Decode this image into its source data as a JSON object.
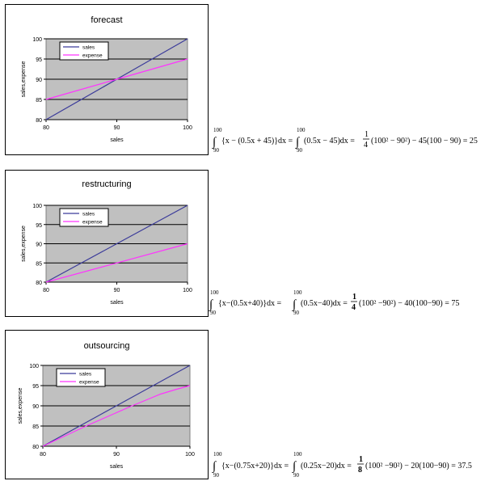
{
  "colors": {
    "sales": "#3b3b9a",
    "expense": "#ff33ff",
    "plot_bg": "#c0c0c0",
    "grid": "#000000"
  },
  "chart_data": [
    {
      "type": "line",
      "title": "forecast",
      "xlabel": "sales",
      "ylabel": "sales,expense",
      "x": [
        80,
        90,
        100
      ],
      "xlim": [
        80,
        100
      ],
      "ylim": [
        80,
        100
      ],
      "xticks": [
        "80",
        "90",
        "100"
      ],
      "yticks": [
        "80",
        "85",
        "90",
        "95",
        "100"
      ],
      "legend": "top-left",
      "series": [
        {
          "name": "sales",
          "values": [
            80,
            90,
            100
          ]
        },
        {
          "name": "expense",
          "values": [
            85,
            90,
            95
          ]
        }
      ]
    },
    {
      "type": "line",
      "title": "restructuring",
      "xlabel": "sales",
      "ylabel": "sales,expense",
      "x": [
        80,
        90,
        100
      ],
      "xlim": [
        80,
        100
      ],
      "ylim": [
        80,
        100
      ],
      "xticks": [
        "80",
        "90",
        "100"
      ],
      "yticks": [
        "80",
        "85",
        "90",
        "95",
        "100"
      ],
      "legend": "top-left",
      "series": [
        {
          "name": "sales",
          "values": [
            80,
            90,
            100
          ]
        },
        {
          "name": "expense",
          "values": [
            80,
            85,
            90
          ]
        }
      ]
    },
    {
      "type": "line",
      "title": "outsourcing",
      "xlabel": "sales",
      "ylabel": "sales,expense",
      "x": [
        80,
        82,
        84,
        86,
        88,
        90,
        92,
        94,
        96,
        98,
        100
      ],
      "xlim": [
        80,
        100
      ],
      "ylim": [
        80,
        100
      ],
      "xticks": [
        "80",
        "90",
        "100"
      ],
      "yticks": [
        "80",
        "85",
        "90",
        "95",
        "100"
      ],
      "legend": "top-left",
      "series": [
        {
          "name": "sales",
          "values": [
            80,
            82,
            84,
            86,
            88,
            90,
            92,
            94,
            96,
            98,
            100
          ]
        },
        {
          "name": "expense",
          "values": [
            80,
            81.7,
            83.4,
            85.1,
            86.7,
            88.3,
            89.9,
            91.4,
            92.9,
            94,
            95
          ]
        }
      ]
    }
  ],
  "formulas": [
    {
      "upper": "100",
      "lower": "90",
      "integrand1": "{x − (0.5x + 45)}dx = ",
      "integrand2": "(0.5x − 45)dx = ",
      "frac_num": "1",
      "frac_den": "4",
      "rest": "(100² − 90²) − 45(100 − 90) = 25"
    },
    {
      "upper": "100",
      "lower": "90",
      "integrand1": "{x−(0.5x+40)}dx = ",
      "integrand2": "(0.5x−40)dx = ",
      "frac_num": "1",
      "frac_den": "4",
      "rest": "(100² −90²) − 40(100−90) = 75"
    },
    {
      "upper": "100",
      "lower": "90",
      "integrand1": "{x−(0.75x+20)}dx = ",
      "integrand2": "(0.25x−20)dx = ",
      "frac_num": "1",
      "frac_den": "8",
      "rest": "(100² −90²) − 20(100−90) = 37.5"
    }
  ]
}
